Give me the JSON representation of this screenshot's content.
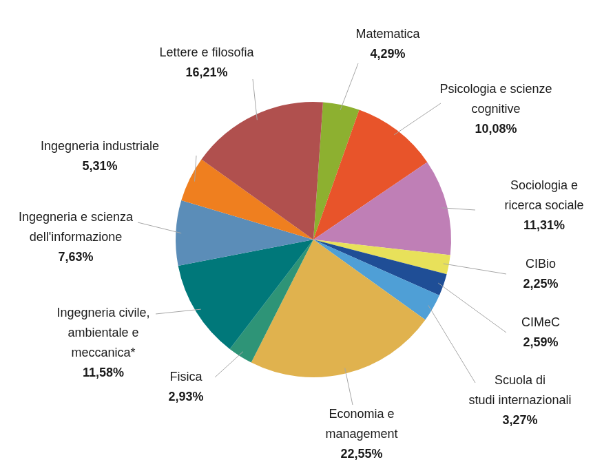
{
  "chart_data": {
    "type": "pie",
    "categories": [
      "Matematica",
      "Psicologia e scienze\ncognitive",
      "Sociologia e\nricerca sociale",
      "CIBio",
      "CIMeC",
      "Scuola di\nstudi internazionali",
      "Economia e\nmanagement",
      "Fisica",
      "Ingegneria civile,\nambientale e\nmeccanica*",
      "Ingegneria e scienza\ndell'informazione",
      "Ingegneria industriale",
      "Lettere e filosofia"
    ],
    "values": [
      4.29,
      10.08,
      11.31,
      2.25,
      2.59,
      3.27,
      22.55,
      2.93,
      11.58,
      7.63,
      5.31,
      16.21
    ],
    "value_labels": [
      "4,29%",
      "10,08%",
      "11,31%",
      "2,25%",
      "2,59%",
      "3,27%",
      "22,55%",
      "2,93%",
      "11,58%",
      "7,63%",
      "5,31%",
      "16,21%"
    ],
    "colors": [
      "#8db030",
      "#e8542a",
      "#bf7fb6",
      "#e8e15a",
      "#1f4e96",
      "#4f9fd6",
      "#e0b24e",
      "#2e9477",
      "#00787a",
      "#5b8db8",
      "#ef7f1f",
      "#b0504e"
    ],
    "data_labels": true
  }
}
